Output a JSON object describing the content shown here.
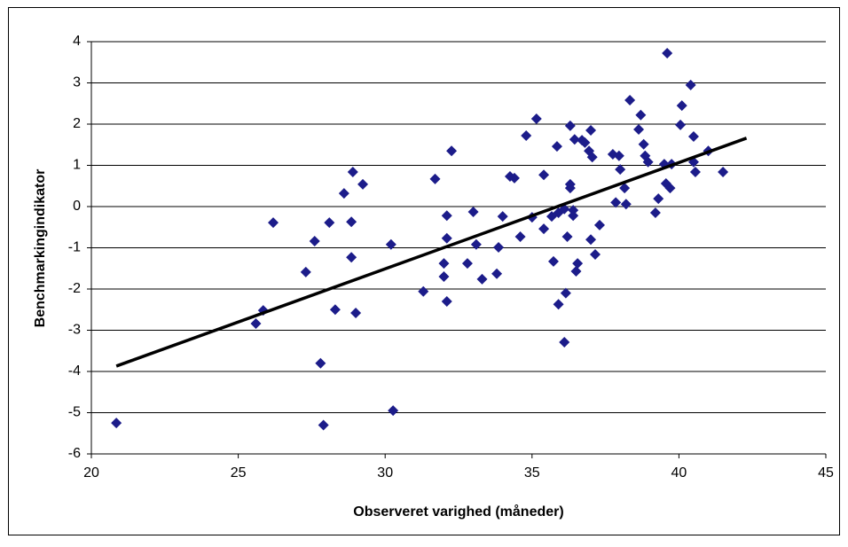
{
  "chart_data": {
    "type": "scatter",
    "x_label": "Observeret varighed (måneder)",
    "y_label": "Benchmarkingindikator",
    "x": [
      20.85,
      25.6,
      25.85,
      26.19,
      27.3,
      27.6,
      27.8,
      27.9,
      28.1,
      28.3,
      28.6,
      28.85,
      28.85,
      28.9,
      29.0,
      29.24,
      30.2,
      30.27,
      31.3,
      31.7,
      32.0,
      32.0,
      32.1,
      32.1,
      32.1,
      32.26,
      32.8,
      33.0,
      33.1,
      33.3,
      33.8,
      33.86,
      34.0,
      34.25,
      34.4,
      34.6,
      34.8,
      35.0,
      35.15,
      35.4,
      35.4,
      35.67,
      35.73,
      35.85,
      35.9,
      35.9,
      36.1,
      36.1,
      36.15,
      36.2,
      36.3,
      36.3,
      36.3,
      36.4,
      36.4,
      36.45,
      36.5,
      36.55,
      36.7,
      36.8,
      36.94,
      37.0,
      37.0,
      37.05,
      37.15,
      37.3,
      37.75,
      37.85,
      37.96,
      38.0,
      38.15,
      38.2,
      38.33,
      38.63,
      38.7,
      38.8,
      38.85,
      38.95,
      39.2,
      39.3,
      39.5,
      39.56,
      39.6,
      39.7,
      39.75,
      40.05,
      40.1,
      40.4,
      40.5,
      40.5,
      40.56,
      41.0,
      41.5
    ],
    "values": [
      -5.25,
      -2.84,
      -2.52,
      -0.39,
      -1.59,
      -0.84,
      -3.8,
      -5.3,
      -0.39,
      -2.5,
      0.32,
      -0.37,
      -1.23,
      0.84,
      -2.58,
      0.54,
      -0.92,
      -4.95,
      -2.06,
      0.67,
      -1.38,
      -1.7,
      -2.3,
      -0.22,
      -0.77,
      1.35,
      -1.38,
      -0.13,
      -0.92,
      -1.76,
      -1.63,
      -0.99,
      -0.24,
      0.73,
      0.69,
      -0.73,
      1.72,
      -0.26,
      2.13,
      0.77,
      -0.54,
      -0.24,
      -1.33,
      1.46,
      -2.37,
      -0.15,
      -3.29,
      -0.06,
      -2.1,
      -0.73,
      0.45,
      0.54,
      1.96,
      -0.09,
      -0.22,
      1.63,
      -1.57,
      -1.38,
      1.61,
      1.55,
      1.35,
      -0.8,
      1.85,
      1.2,
      -1.16,
      -0.45,
      1.27,
      0.1,
      1.23,
      0.9,
      0.45,
      0.06,
      2.58,
      1.87,
      2.22,
      1.51,
      1.23,
      1.08,
      -0.15,
      0.19,
      1.03,
      0.56,
      3.72,
      0.45,
      1.03,
      1.98,
      2.45,
      2.95,
      1.7,
      1.08,
      0.84,
      1.35,
      0.84
    ],
    "color": "#1c1c8a",
    "trendline": {
      "x": [
        20.85,
        42.3
      ],
      "values": [
        -3.87,
        1.66
      ],
      "color": "#000000"
    },
    "xlim": [
      20,
      45
    ],
    "xticks": [
      20,
      25,
      30,
      35,
      40,
      45
    ],
    "ylim": [
      -6,
      4
    ],
    "yticks": [
      -6,
      -5,
      -4,
      -3,
      -2,
      -1,
      0,
      1,
      2,
      3,
      4
    ],
    "grid": true
  }
}
